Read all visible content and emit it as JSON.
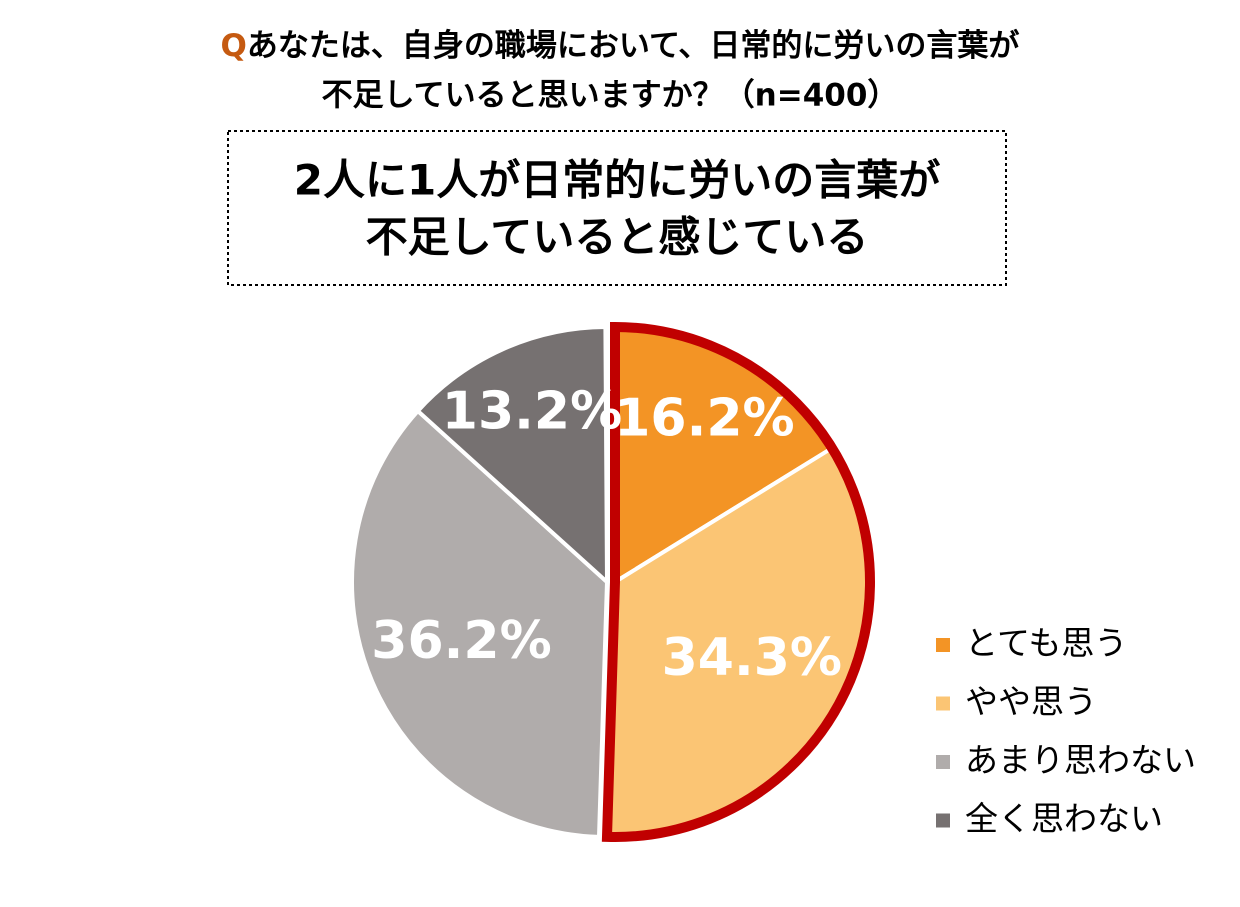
{
  "chart_data": {
    "type": "pie",
    "question_label": "Q",
    "title_lines": [
      "あなたは、自身の職場において、日常的に労いの言葉が",
      "不足していると思いますか？（n=400）"
    ],
    "annotation_lines": [
      "2人に1人が日常的に労いの言葉が",
      "不足していると感じている"
    ],
    "categories": [
      "とても思う",
      "やや思う",
      "あまり思わない",
      "全く思わない"
    ],
    "values": [
      16.2,
      34.3,
      36.2,
      13.2
    ],
    "value_labels": [
      "16.2%",
      "34.3%",
      "36.2%",
      "13.2%"
    ],
    "colors": [
      "#f39425",
      "#fbc574",
      "#b0acab",
      "#767171"
    ],
    "highlight_color": "#c00000",
    "legend": "right"
  }
}
